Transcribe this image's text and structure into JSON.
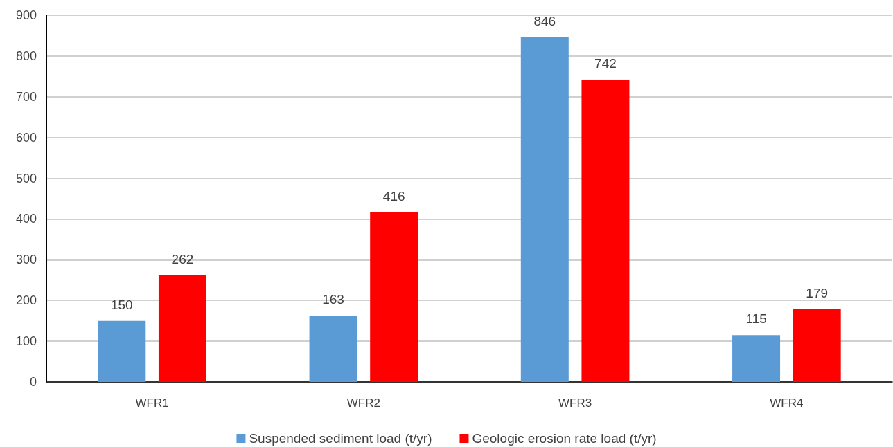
{
  "chart_data": {
    "type": "bar",
    "categories": [
      "WFR1",
      "WFR2",
      "WFR3",
      "WFR4"
    ],
    "series": [
      {
        "name": "Suspended sediment load (t/yr)",
        "color": "#5b9bd5",
        "values": [
          150,
          163,
          846,
          115
        ]
      },
      {
        "name": "Geologic erosion rate load (t/yr)",
        "color": "#ff0000",
        "values": [
          262,
          416,
          742,
          179
        ]
      }
    ],
    "ylim": [
      0,
      900
    ],
    "yticks": [
      0,
      100,
      200,
      300,
      400,
      500,
      600,
      700,
      800,
      900
    ],
    "grid": "y",
    "legend": "bottom",
    "data_labels": true
  }
}
